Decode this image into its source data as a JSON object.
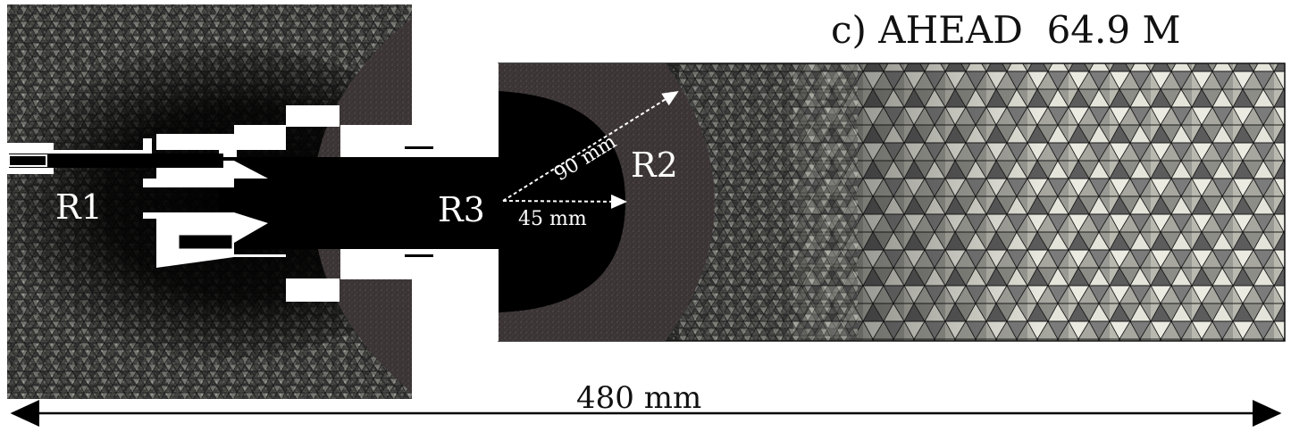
{
  "title": "c) AHEAD  64.9 M",
  "regions": {
    "r1": "R1",
    "r2": "R2",
    "r3": "R3"
  },
  "dimensions": {
    "radius_outer": "90 mm",
    "radius_inner": "45 mm",
    "total_length": "480 mm"
  },
  "colors": {
    "background": "#ffffff",
    "dense_mesh": "#141414",
    "outer_mesh_light": "#d9d9cf",
    "outer_mesh_dark": "#5a5a5a",
    "sphere_shell": "#3a3434",
    "core": "#000000",
    "arrow": "#ffffff"
  }
}
